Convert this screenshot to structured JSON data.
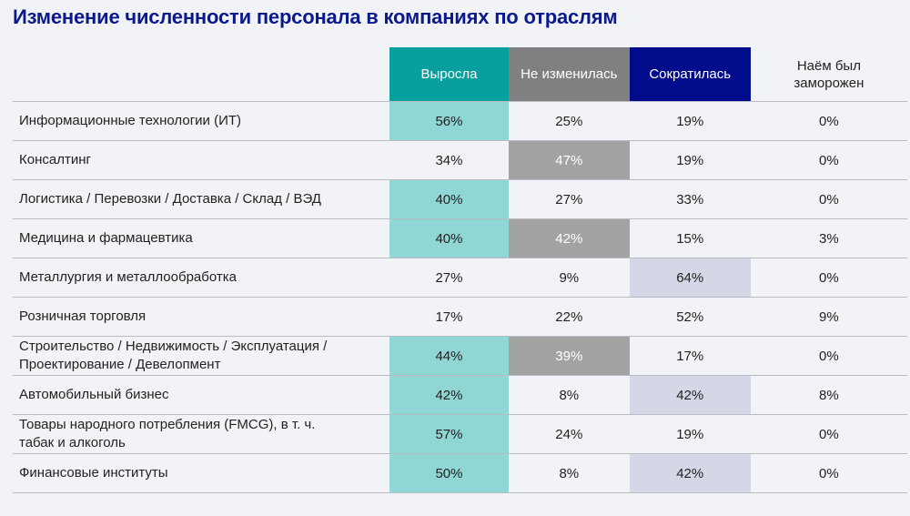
{
  "title": "Изменение численности персонала в компаниях по отраслям",
  "colors": {
    "grew_header": "#08a09e",
    "grew_highlight": "#8fd6d4",
    "unchanged_header": "#808080",
    "unchanged_highlight": "#a3a3a3",
    "decreased_header": "#000c8c",
    "decreased_highlight": "#d4d8e6"
  },
  "chart_data": {
    "type": "table",
    "columns": [
      "Выросла",
      "Не изменилась",
      "Сократилась",
      "Наём был заморожен"
    ],
    "rows": [
      {
        "label": "Информационные технологии (ИТ)",
        "values": [
          "56%",
          "25%",
          "19%",
          "0%"
        ],
        "highlight": [
          true,
          false,
          false,
          false
        ]
      },
      {
        "label": "Консалтинг",
        "values": [
          "34%",
          "47%",
          "19%",
          "0%"
        ],
        "highlight": [
          false,
          true,
          false,
          false
        ]
      },
      {
        "label": "Логистика / Перевозки / Доставка / Склад / ВЭД",
        "values": [
          "40%",
          "27%",
          "33%",
          "0%"
        ],
        "highlight": [
          true,
          false,
          false,
          false
        ]
      },
      {
        "label": "Медицина и фармацевтика",
        "values": [
          "40%",
          "42%",
          "15%",
          "3%"
        ],
        "highlight": [
          true,
          true,
          false,
          false
        ]
      },
      {
        "label": "Металлургия и металлообработка",
        "values": [
          "27%",
          "9%",
          "64%",
          "0%"
        ],
        "highlight": [
          false,
          false,
          true,
          false
        ]
      },
      {
        "label": "Розничная торговля",
        "values": [
          "17%",
          "22%",
          "52%",
          "9%"
        ],
        "highlight": [
          false,
          false,
          false,
          false
        ]
      },
      {
        "label": "Строительство / Недвижимость / Эксплуатация / Проектирование / Девелопмент",
        "values": [
          "44%",
          "39%",
          "17%",
          "0%"
        ],
        "highlight": [
          true,
          true,
          false,
          false
        ]
      },
      {
        "label": "Автомобильный бизнес",
        "values": [
          "42%",
          "8%",
          "42%",
          "8%"
        ],
        "highlight": [
          true,
          false,
          true,
          false
        ]
      },
      {
        "label": "Товары народного потребления (FMCG), в т. ч. табак и алкоголь",
        "values": [
          "57%",
          "24%",
          "19%",
          "0%"
        ],
        "highlight": [
          true,
          false,
          false,
          false
        ]
      },
      {
        "label": "Финансовые институты",
        "values": [
          "50%",
          "8%",
          "42%",
          "0%"
        ],
        "highlight": [
          true,
          false,
          true,
          false
        ]
      }
    ]
  }
}
